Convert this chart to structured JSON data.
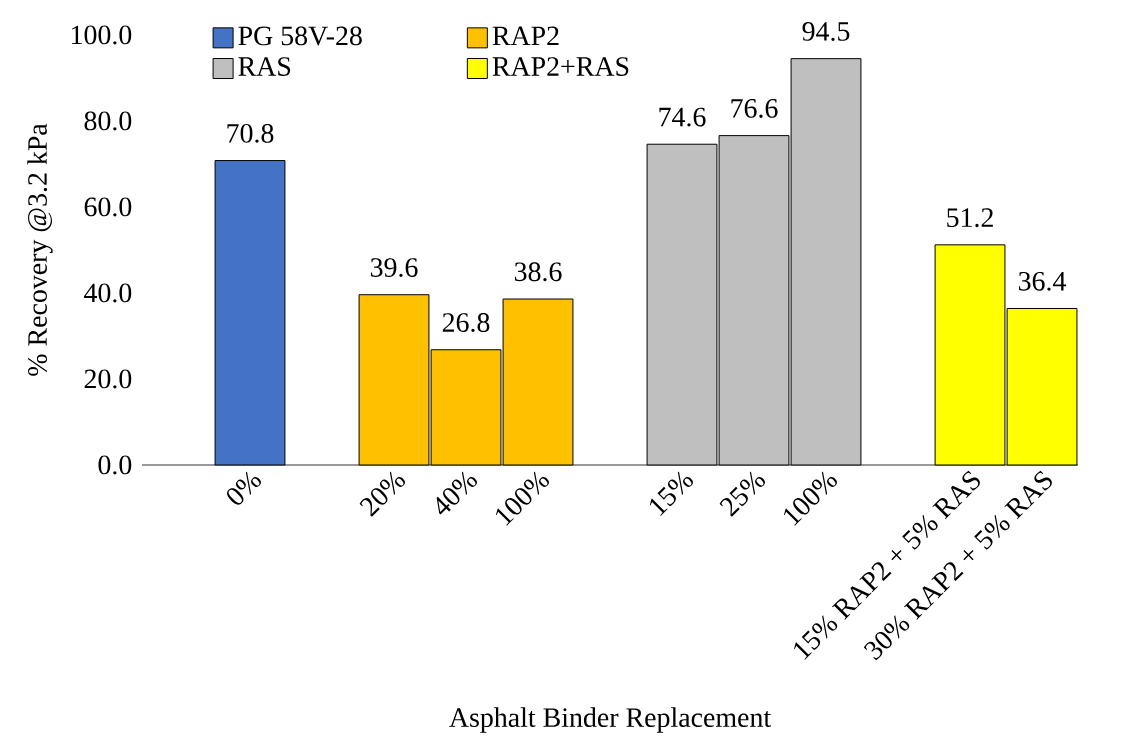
{
  "chart_data": {
    "type": "bar",
    "xlabel": "Asphalt Binder Replacement",
    "ylabel": "% Recovery @3.2 kPa",
    "categories": [
      null,
      "0%",
      null,
      "20%",
      "40%",
      "100%",
      null,
      "15%",
      "25%",
      "100%",
      null,
      "15% RAP2 + 5% RAS",
      "30% RAP2 + 5% RAS"
    ],
    "series": [
      {
        "name": "PG 58V-28",
        "color": "#4472c4",
        "values": [
          null,
          70.8,
          null,
          null,
          null,
          null,
          null,
          null,
          null,
          null,
          null,
          null,
          null
        ],
        "value_labels": [
          null,
          "70.8",
          null,
          null,
          null,
          null,
          null,
          null,
          null,
          null,
          null,
          null,
          null
        ]
      },
      {
        "name": "RAP2",
        "color": "#ffc000",
        "values": [
          null,
          null,
          null,
          39.6,
          26.8,
          38.6,
          null,
          null,
          null,
          null,
          null,
          null,
          null
        ],
        "value_labels": [
          null,
          null,
          null,
          "39.6",
          "26.8",
          "38.6",
          null,
          null,
          null,
          null,
          null,
          null,
          null
        ]
      },
      {
        "name": "RAS",
        "color": "#bfbfbf",
        "values": [
          null,
          null,
          null,
          null,
          null,
          null,
          null,
          74.6,
          76.6,
          94.5,
          null,
          null,
          null
        ],
        "value_labels": [
          null,
          null,
          null,
          null,
          null,
          null,
          null,
          "74.6",
          "76.6",
          "94.5",
          null,
          null,
          null
        ]
      },
      {
        "name": "RAP2+RAS",
        "color": "#ffff00",
        "values": [
          null,
          null,
          null,
          null,
          null,
          null,
          null,
          null,
          null,
          null,
          null,
          51.2,
          36.4
        ],
        "value_labels": [
          null,
          null,
          null,
          null,
          null,
          null,
          null,
          null,
          null,
          null,
          null,
          "51.2",
          "36.4"
        ]
      }
    ],
    "ylim": [
      0,
      100
    ],
    "yticks": [
      {
        "value": 0,
        "label": "0.0"
      },
      {
        "value": 20,
        "label": "20.0"
      },
      {
        "value": 40,
        "label": "40.0"
      },
      {
        "value": 60,
        "label": "60.0"
      },
      {
        "value": 80,
        "label": "80.0"
      },
      {
        "value": 100,
        "label": "100.0"
      }
    ],
    "legend": "top left",
    "grid": false
  }
}
